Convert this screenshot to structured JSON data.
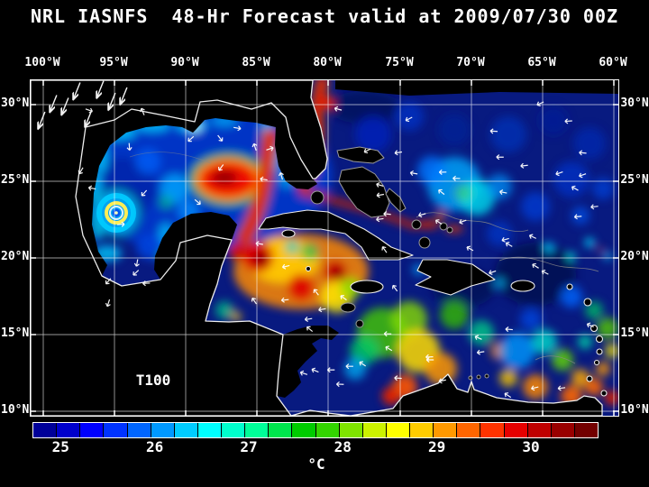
{
  "title": "NRL IASNFS  48-Hr Forecast valid at 2009/07/30 00Z",
  "axes": {
    "lon": [
      "100°W",
      "95°W",
      "90°W",
      "85°W",
      "80°W",
      "75°W",
      "70°W",
      "65°W",
      "60°W"
    ],
    "lat": [
      "30°N",
      "25°N",
      "20°N",
      "15°N",
      "10°N"
    ]
  },
  "map": {
    "field_label": "T100"
  },
  "colorbar": {
    "ticks": [
      "25",
      "26",
      "27",
      "28",
      "29",
      "30"
    ],
    "tick_values": [
      25,
      26,
      27,
      28,
      29,
      30
    ],
    "min": 24.7,
    "max": 30.7,
    "unit": "°C",
    "colors": [
      "#000099",
      "#0000CC",
      "#0000FF",
      "#0033FF",
      "#0066FF",
      "#0099FF",
      "#00CCFF",
      "#00FFFF",
      "#00FFCC",
      "#00FF99",
      "#00E64D",
      "#00CC00",
      "#33D500",
      "#7FE400",
      "#CCF200",
      "#FFFF00",
      "#FFCC00",
      "#FF9900",
      "#FF6600",
      "#FF3300",
      "#E60000",
      "#BF0000",
      "#990000",
      "#730000"
    ]
  },
  "chart_data": {
    "type": "heatmap",
    "title": "NRL IASNFS  48-Hr Forecast valid at 2009/07/30 00Z",
    "field_label": "T100",
    "x_ticks": [
      "100°W",
      "95°W",
      "90°W",
      "85°W",
      "80°W",
      "75°W",
      "70°W",
      "65°W",
      "60°W"
    ],
    "y_ticks": [
      "30°N",
      "25°N",
      "20°N",
      "15°N",
      "10°N"
    ],
    "colorbar_unit": "°C",
    "colorbar_tick_values": [
      25,
      26,
      27,
      28,
      29,
      30
    ],
    "colorbar_range": [
      24.7,
      30.7
    ]
  }
}
